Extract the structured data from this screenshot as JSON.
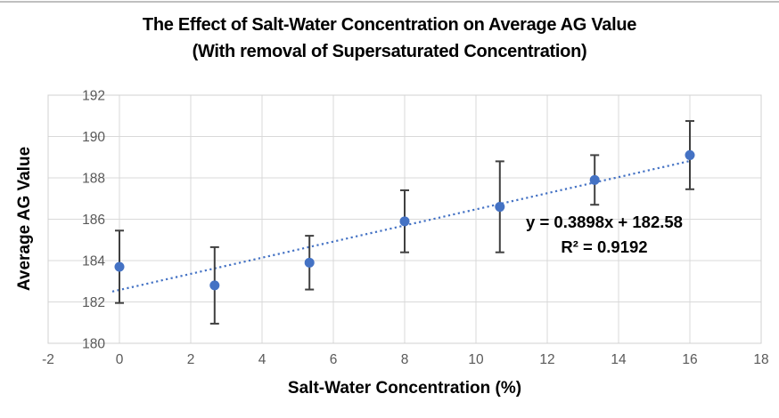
{
  "chart_data": {
    "type": "scatter",
    "title": "The Effect of Salt-Water Concentration on Average AG Value",
    "subtitle": "(With removal of Supersaturated Concentration)",
    "xlabel": "Salt-Water Concentration (%)",
    "ylabel": "Average AG Value",
    "xlim": [
      -2,
      18
    ],
    "ylim": [
      180,
      192
    ],
    "x_ticks": [
      -2,
      0,
      2,
      4,
      6,
      8,
      10,
      12,
      14,
      16,
      18
    ],
    "y_ticks": [
      180,
      182,
      184,
      186,
      188,
      190,
      192
    ],
    "grid": true,
    "legend": false,
    "points": [
      {
        "x": 0,
        "y": 183.7,
        "error": 1.75
      },
      {
        "x": 2.67,
        "y": 182.8,
        "error": 1.85
      },
      {
        "x": 5.33,
        "y": 183.9,
        "error": 1.3
      },
      {
        "x": 8,
        "y": 185.9,
        "error": 1.5
      },
      {
        "x": 10.67,
        "y": 186.6,
        "error": 2.2
      },
      {
        "x": 13.33,
        "y": 187.9,
        "error": 1.2
      },
      {
        "x": 16,
        "y": 189.1,
        "error": 1.65
      }
    ],
    "trendline": {
      "type": "linear",
      "slope": 0.3898,
      "intercept": 182.58,
      "r_squared": 0.9192,
      "equation_label": "y = 0.3898x + 182.58",
      "r_squared_label": "R² = 0.9192",
      "x_start": -0.2,
      "x_end": 16,
      "annotation_anchor": {
        "x": 13.6,
        "y": 185.6
      }
    },
    "colors": {
      "marker": "#4472C4",
      "trendline": "#4472C4",
      "error_bar": "#404040",
      "gridline": "#D9D9D9",
      "plot_border": "#D0D0D0",
      "axis_text": "#595959",
      "title_text": "#000000",
      "top_edge": "#BFBFBF"
    }
  }
}
